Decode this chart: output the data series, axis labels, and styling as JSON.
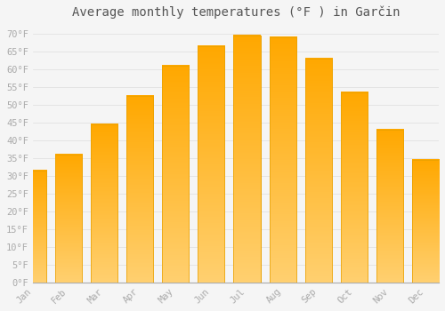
{
  "title": "Average monthly temperatures (°F ) in Garčin",
  "months": [
    "Jan",
    "Feb",
    "Mar",
    "Apr",
    "May",
    "Jun",
    "Jul",
    "Aug",
    "Sep",
    "Oct",
    "Nov",
    "Dec"
  ],
  "values": [
    31.5,
    36.0,
    44.5,
    52.5,
    61.0,
    66.5,
    69.5,
    69.0,
    63.0,
    53.5,
    43.0,
    34.5
  ],
  "bar_color_top": "#FFBE00",
  "bar_color_bottom": "#FFD060",
  "bar_edge_color": "#E8A800",
  "background_color": "#f5f5f5",
  "plot_bg_color": "#f5f5f5",
  "grid_color": "#dddddd",
  "tick_label_color": "#aaaaaa",
  "title_color": "#555555",
  "ylim": [
    0,
    72
  ],
  "yticks": [
    0,
    5,
    10,
    15,
    20,
    25,
    30,
    35,
    40,
    45,
    50,
    55,
    60,
    65,
    70
  ],
  "ytick_labels": [
    "0°F",
    "5°F",
    "10°F",
    "15°F",
    "20°F",
    "25°F",
    "30°F",
    "35°F",
    "40°F",
    "45°F",
    "50°F",
    "55°F",
    "60°F",
    "65°F",
    "70°F"
  ],
  "font_family": "monospace",
  "title_fontsize": 10,
  "tick_fontsize": 7.5,
  "bar_width": 0.75
}
